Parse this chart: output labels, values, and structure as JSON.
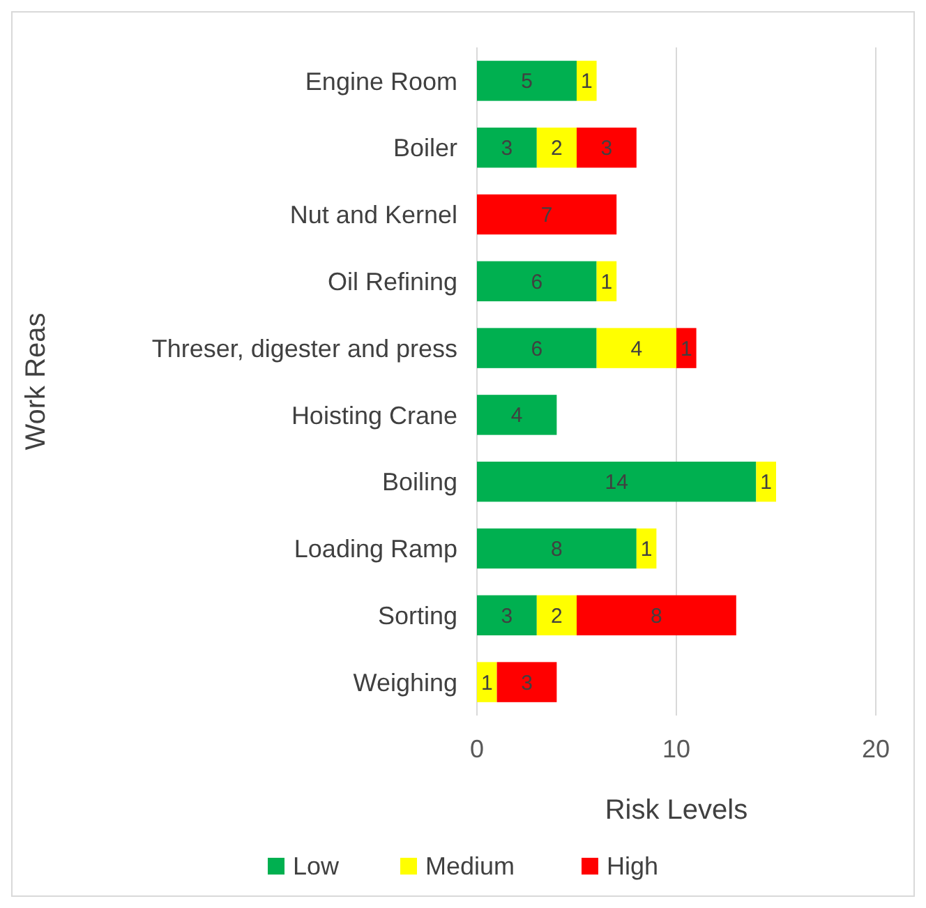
{
  "chart_data": {
    "type": "bar",
    "orientation": "horizontal",
    "stacked": true,
    "data_labels": true,
    "xlabel": "Risk Levels",
    "ylabel": "Work Reas",
    "categories": [
      "Engine Room",
      "Boiler",
      "Nut and Kernel",
      "Oil Refining",
      "Threser, digester and press",
      "Hoisting Crane",
      "Boiling",
      "Loading Ramp",
      "Sorting",
      "Weighing"
    ],
    "series": [
      {
        "name": "Low",
        "color": "#00b050",
        "values": [
          5,
          3,
          null,
          6,
          6,
          4,
          14,
          8,
          3,
          null
        ]
      },
      {
        "name": "Medium",
        "color": "#ffff00",
        "values": [
          1,
          2,
          null,
          1,
          4,
          null,
          1,
          1,
          2,
          1
        ]
      },
      {
        "name": "High",
        "color": "#ff0000",
        "values": [
          null,
          3,
          7,
          null,
          1,
          null,
          null,
          null,
          8,
          3
        ]
      }
    ],
    "xlim": [
      0,
      20
    ],
    "xticks": [
      0,
      10,
      20
    ],
    "grid": "x",
    "legend": "bottom"
  }
}
